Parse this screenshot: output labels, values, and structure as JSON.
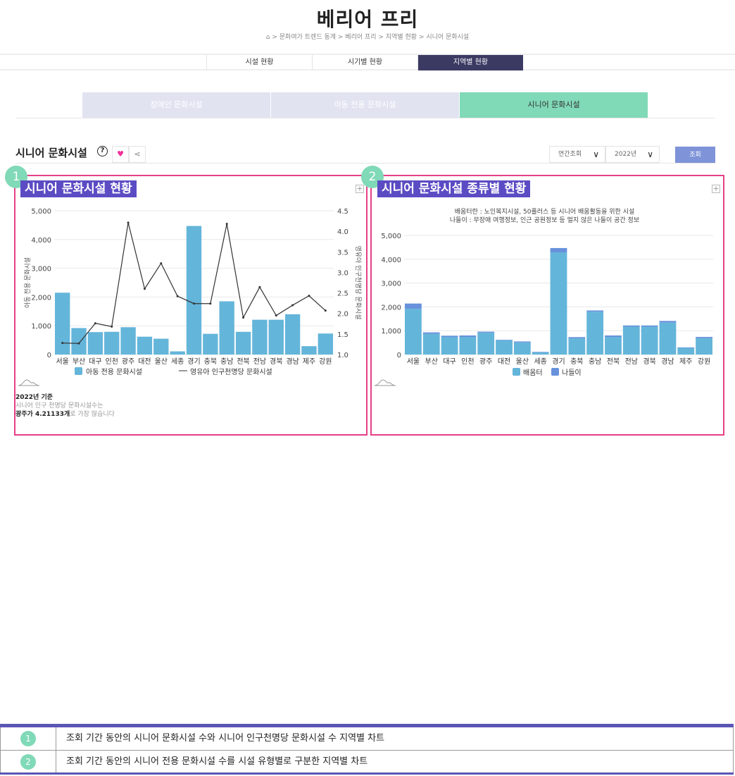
{
  "header": {
    "title": "베리어 프리",
    "breadcrumb": [
      "문화여가 트렌드 동계",
      "베리어 프리",
      "지역별 현황",
      "시니어 문화시설"
    ]
  },
  "nav_tabs": [
    {
      "label": "시설 현황"
    },
    {
      "label": "시기별 현황"
    },
    {
      "label": "지역별 현황",
      "active": true
    }
  ],
  "sub_tabs": [
    {
      "label": "장애인 문화시설"
    },
    {
      "label": "아동 전용 문화시설"
    },
    {
      "label": "시니어 문화시설",
      "active": true
    }
  ],
  "section": {
    "title": "시니어 문화시설",
    "help": "?",
    "period_select": "연간조회",
    "year_select": "2022년",
    "search_label": "조회"
  },
  "colors": {
    "accent": "#5b4cc4",
    "highlight": "#e63f86",
    "tab_active": "#80d9b7",
    "bar": "#64b5da",
    "bar2": "#6891dc",
    "nav_active": "#3b3a63"
  },
  "panels": [
    {
      "number": "1",
      "title": "시니어 문화시설 현황"
    },
    {
      "number": "2",
      "title": "시니어 문화시설 종류별 현황"
    }
  ],
  "note": {
    "line1": "2022년 기준",
    "line2": "시니어 인구 천명당 문화시설수는",
    "line3_bold": "광주가 4.21133개",
    "line3_rest": "로 가장 많습니다"
  },
  "chart_data": [
    {
      "type": "bar+line",
      "categories": [
        "서울",
        "부산",
        "대구",
        "인천",
        "광주",
        "대전",
        "울산",
        "세종",
        "경기",
        "충북",
        "충남",
        "전북",
        "전남",
        "경북",
        "경남",
        "제주",
        "강원"
      ],
      "ylabel": "아동 전용 문화시설",
      "y2label": "영유아 인구천명당 문화시설",
      "ylim": [
        0,
        5000
      ],
      "y2lim": [
        1.0,
        4.5
      ],
      "yticks": [
        "0",
        "1,000",
        "2,000",
        "3,000",
        "4,000",
        "5,000"
      ],
      "y2ticks": [
        "1.0",
        "1.5",
        "2.0",
        "2.5",
        "3.0",
        "3.5",
        "4.0",
        "4.5"
      ],
      "series": [
        {
          "name": "아동 전용 문화시설",
          "type": "bar",
          "axis": "left",
          "values": [
            2150,
            920,
            780,
            790,
            950,
            620,
            550,
            110,
            4470,
            720,
            1850,
            790,
            1210,
            1210,
            1400,
            290,
            730
          ]
        },
        {
          "name": "영유아 인구천명당 문화시설",
          "type": "line",
          "axis": "right",
          "values": [
            1.28,
            1.27,
            1.76,
            1.68,
            4.21,
            2.6,
            3.22,
            2.42,
            2.24,
            2.24,
            4.18,
            1.9,
            2.64,
            1.95,
            2.2,
            2.43,
            2.07
          ]
        }
      ],
      "grid": true,
      "legend": "bottom"
    },
    {
      "type": "stacked-bar",
      "subtitle": [
        "배움터란 : 노인복지시설, 50플러스 등 시니어 배움활동을 위한 시설",
        "나들이 : 무장애 여행정보, 인근 공원정보 등 멀지 않은 나들이 공간 정보"
      ],
      "categories": [
        "서울",
        "부산",
        "대구",
        "인천",
        "광주",
        "대전",
        "울산",
        "세종",
        "경기",
        "충북",
        "충남",
        "전북",
        "전남",
        "경북",
        "경남",
        "제주",
        "강원"
      ],
      "ylim": [
        0,
        5000
      ],
      "yticks": [
        "0",
        "1,000",
        "2,000",
        "3,000",
        "4,000",
        "5,000"
      ],
      "series": [
        {
          "name": "배움터",
          "values": [
            1920,
            870,
            740,
            740,
            920,
            600,
            510,
            90,
            4290,
            680,
            1800,
            740,
            1170,
            1170,
            1340,
            280,
            690
          ]
        },
        {
          "name": "나들이",
          "values": [
            220,
            60,
            50,
            60,
            40,
            20,
            40,
            20,
            180,
            50,
            50,
            60,
            50,
            50,
            70,
            20,
            50
          ]
        }
      ],
      "grid": true,
      "legend": "bottom"
    }
  ],
  "descriptions": [
    {
      "number": "1",
      "text": "조회 기간 동안의 시니어 문화시설 수와 시니어 인구천명당 문화시설 수 지역별 차트"
    },
    {
      "number": "2",
      "text": "조회 기간 동안의 시니어 전용 문화시설 수를 시설 유형별로 구분한 지역별 차트"
    }
  ]
}
